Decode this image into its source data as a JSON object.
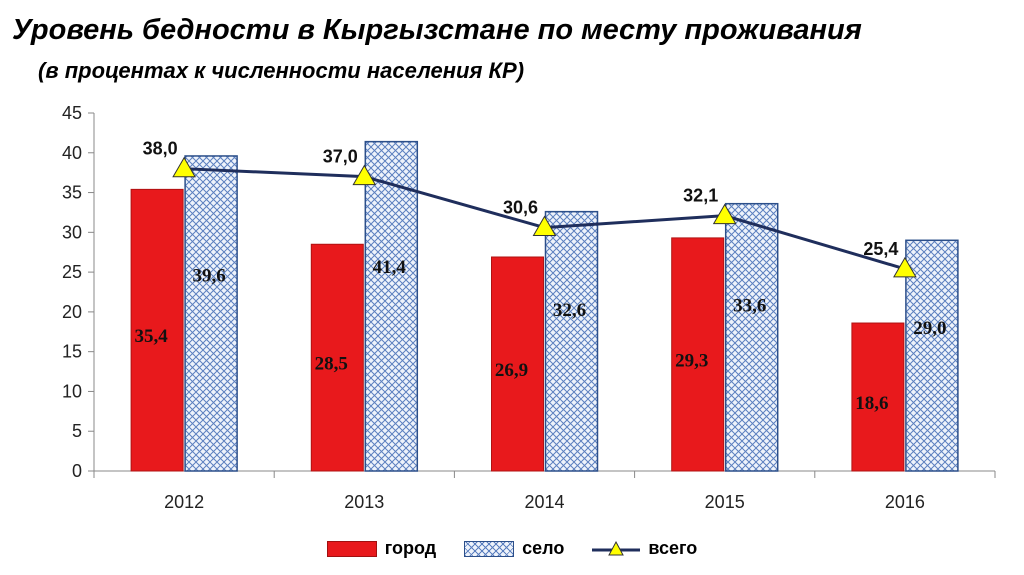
{
  "title": "Уровень бедности в  Кыргызстане по месту проживания",
  "subtitle": "(в процентах к численности населения КР)",
  "colors": {
    "city": "#e8191c",
    "village_hatch": "#5b7fbf",
    "total_line": "#1f2e5c",
    "marker": "#ffff00"
  },
  "chart_data": {
    "type": "bar",
    "categories": [
      "2012",
      "2013",
      "2014",
      "2015",
      "2016"
    ],
    "series": [
      {
        "name": "город",
        "type": "bar",
        "values": [
          35.4,
          28.5,
          26.9,
          29.3,
          18.6
        ],
        "labels": [
          "35,4",
          "28,5",
          "26,9",
          "29,3",
          "18,6"
        ]
      },
      {
        "name": "село",
        "type": "bar",
        "values": [
          39.6,
          41.4,
          32.6,
          33.6,
          29.0
        ],
        "labels": [
          "39,6",
          "41,4",
          "32,6",
          "33,6",
          "29,0"
        ]
      },
      {
        "name": "всего",
        "type": "line",
        "values": [
          38.0,
          37.0,
          30.6,
          32.1,
          25.4
        ],
        "labels": [
          "38,0",
          "37,0",
          "30,6",
          "32,1",
          "25,4"
        ]
      }
    ],
    "yticks": [
      "0",
      "5",
      "10",
      "15",
      "20",
      "25",
      "30",
      "35",
      "40",
      "45"
    ],
    "ylim": [
      0,
      45
    ],
    "legend_position": "bottom"
  },
  "legend": {
    "city": "город",
    "village": "село",
    "total": "всего"
  }
}
